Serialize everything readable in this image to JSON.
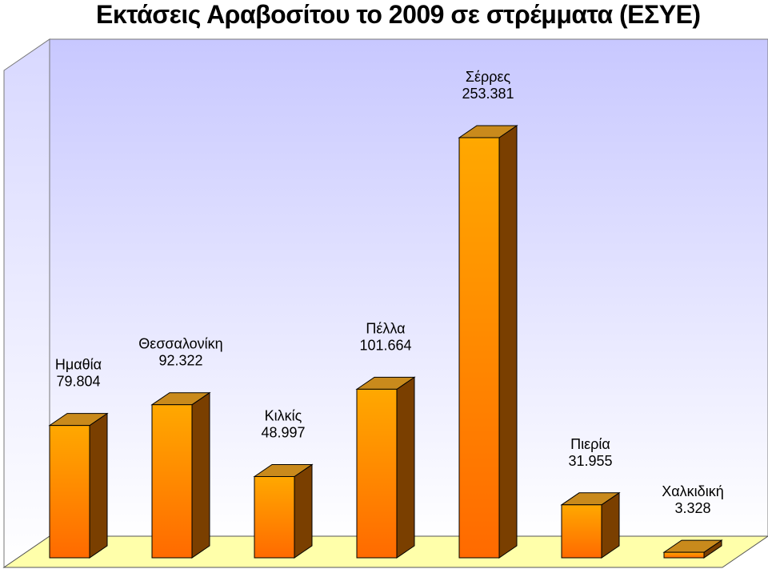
{
  "chart_data": {
    "type": "bar",
    "title": "Εκτάσεις Αραβοσίτου το 2009 σε στρέμματα (ΕΣΥΕ)",
    "categories": [
      "Ημαθία",
      "Θεσσαλονίκη",
      "Κιλκίς",
      "Πέλλα",
      "Σέρρες",
      "Πιερία",
      "Χαλκιδική"
    ],
    "values": [
      79804,
      92322,
      48997,
      101664,
      253381,
      31955,
      3328
    ],
    "data_labels": [
      "79.804",
      "92.322",
      "48.997",
      "101.664",
      "253.381",
      "31.955",
      "3.328"
    ],
    "xlabel": "",
    "ylabel": "",
    "grid": false,
    "legend": "none",
    "style": "3d-column",
    "colors": {
      "bar_front_top": "#ffa800",
      "bar_front_bottom": "#ff6a00",
      "bar_side": "#7a3f00",
      "bar_top": "#c98a1c",
      "back_wall_top": "#c8c8ff",
      "back_wall_bottom": "#ffffff",
      "floor": "#ffffaa"
    }
  }
}
